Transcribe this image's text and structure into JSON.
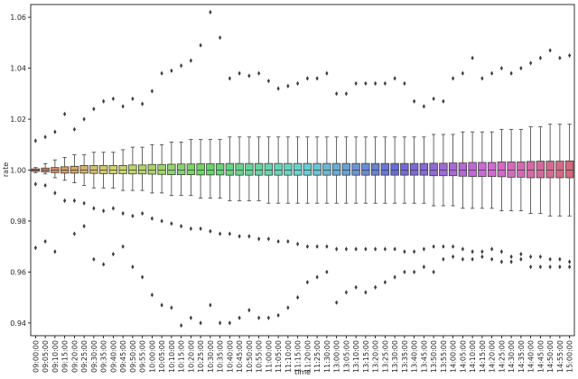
{
  "chart_data": {
    "type": "boxplot",
    "title": "",
    "xlabel": "time",
    "ylabel": "rate",
    "ylim": [
      0.935,
      1.065
    ],
    "yticks": [
      0.94,
      0.96,
      0.98,
      1.0,
      1.02,
      1.04,
      1.06
    ],
    "grid": false,
    "legend": "none",
    "categories": [
      "09:00:00",
      "09:05:00",
      "09:10:00",
      "09:15:00",
      "09:20:00",
      "09:25:00",
      "09:30:00",
      "09:35:00",
      "09:40:00",
      "09:45:00",
      "09:50:00",
      "09:55:00",
      "10:00:00",
      "10:05:00",
      "10:10:00",
      "10:15:00",
      "10:20:00",
      "10:25:00",
      "10:30:00",
      "10:35:00",
      "10:40:00",
      "10:45:00",
      "10:50:00",
      "10:55:00",
      "11:00:00",
      "11:05:00",
      "11:10:00",
      "11:15:00",
      "11:20:00",
      "11:25:00",
      "11:30:00",
      "13:00:00",
      "13:05:00",
      "13:10:00",
      "13:15:00",
      "13:20:00",
      "13:25:00",
      "13:30:00",
      "13:35:00",
      "13:40:00",
      "13:45:00",
      "13:50:00",
      "13:55:00",
      "14:00:00",
      "14:05:00",
      "14:10:00",
      "14:15:00",
      "14:20:00",
      "14:25:00",
      "14:30:00",
      "14:35:00",
      "14:40:00",
      "14:45:00",
      "14:50:00",
      "14:55:00",
      "15:00:00"
    ],
    "boxes": [
      {
        "q1": 0.9995,
        "median": 1.0,
        "q3": 1.0005,
        "whisker_low": 0.999,
        "whisker_high": 1.001,
        "outliers": [
          1.0115,
          0.9945,
          0.9695
        ]
      },
      {
        "q1": 0.9993,
        "median": 1.0,
        "q3": 1.0008,
        "whisker_low": 0.9985,
        "whisker_high": 1.0025,
        "outliers": [
          1.013,
          0.994,
          0.972
        ]
      },
      {
        "q1": 0.999,
        "median": 1.0,
        "q3": 1.001,
        "whisker_low": 0.997,
        "whisker_high": 1.004,
        "outliers": [
          1.015,
          0.991,
          0.968
        ]
      },
      {
        "q1": 0.9988,
        "median": 1.0,
        "q3": 1.0013,
        "whisker_low": 0.996,
        "whisker_high": 1.005,
        "outliers": [
          1.022,
          0.988
        ]
      },
      {
        "q1": 0.9988,
        "median": 1.0,
        "q3": 1.0015,
        "whisker_low": 0.995,
        "whisker_high": 1.006,
        "outliers": [
          1.016,
          0.988,
          0.975
        ]
      },
      {
        "q1": 0.9988,
        "median": 1.0,
        "q3": 1.0018,
        "whisker_low": 0.994,
        "whisker_high": 1.006,
        "outliers": [
          1.02,
          0.987,
          0.978
        ]
      },
      {
        "q1": 0.9987,
        "median": 1.0,
        "q3": 1.0018,
        "whisker_low": 0.993,
        "whisker_high": 1.007,
        "outliers": [
          1.024,
          0.985,
          0.965
        ]
      },
      {
        "q1": 0.9986,
        "median": 1.0,
        "q3": 1.0018,
        "whisker_low": 0.993,
        "whisker_high": 1.007,
        "outliers": [
          1.027,
          0.984,
          0.963
        ]
      },
      {
        "q1": 0.9986,
        "median": 1.0,
        "q3": 1.0018,
        "whisker_low": 0.993,
        "whisker_high": 1.007,
        "outliers": [
          1.028,
          0.985,
          0.967
        ]
      },
      {
        "q1": 0.9986,
        "median": 1.0,
        "q3": 1.0018,
        "whisker_low": 0.992,
        "whisker_high": 1.008,
        "outliers": [
          1.025,
          0.983,
          0.97
        ]
      },
      {
        "q1": 0.9985,
        "median": 1.0,
        "q3": 1.002,
        "whisker_low": 0.992,
        "whisker_high": 1.009,
        "outliers": [
          1.028,
          0.982,
          0.962
        ]
      },
      {
        "q1": 0.9985,
        "median": 1.0,
        "q3": 1.002,
        "whisker_low": 0.992,
        "whisker_high": 1.009,
        "outliers": [
          1.026,
          0.983,
          0.958
        ]
      },
      {
        "q1": 0.9984,
        "median": 1.0,
        "q3": 1.0022,
        "whisker_low": 0.991,
        "whisker_high": 1.01,
        "outliers": [
          1.031,
          0.981,
          0.951
        ]
      },
      {
        "q1": 0.9983,
        "median": 1.0,
        "q3": 1.0022,
        "whisker_low": 0.991,
        "whisker_high": 1.01,
        "outliers": [
          1.038,
          0.98,
          0.947
        ]
      },
      {
        "q1": 0.9982,
        "median": 1.0,
        "q3": 1.0023,
        "whisker_low": 0.99,
        "whisker_high": 1.011,
        "outliers": [
          1.039,
          0.979,
          0.946
        ]
      },
      {
        "q1": 0.9982,
        "median": 1.0,
        "q3": 1.0024,
        "whisker_low": 0.99,
        "whisker_high": 1.011,
        "outliers": [
          1.041,
          0.978,
          0.939
        ]
      },
      {
        "q1": 0.9982,
        "median": 1.0,
        "q3": 1.0024,
        "whisker_low": 0.99,
        "whisker_high": 1.012,
        "outliers": [
          1.043,
          0.977,
          0.942
        ]
      },
      {
        "q1": 0.9981,
        "median": 1.0,
        "q3": 1.0025,
        "whisker_low": 0.989,
        "whisker_high": 1.012,
        "outliers": [
          1.049,
          0.977,
          0.94
        ]
      },
      {
        "q1": 0.9981,
        "median": 1.0,
        "q3": 1.0025,
        "whisker_low": 0.989,
        "whisker_high": 1.012,
        "outliers": [
          1.062,
          0.976,
          0.947
        ]
      },
      {
        "q1": 0.9981,
        "median": 1.0,
        "q3": 1.0025,
        "whisker_low": 0.989,
        "whisker_high": 1.012,
        "outliers": [
          1.052,
          0.975,
          0.94
        ]
      },
      {
        "q1": 0.998,
        "median": 1.0,
        "q3": 1.0026,
        "whisker_low": 0.988,
        "whisker_high": 1.013,
        "outliers": [
          1.036,
          0.975,
          0.94
        ]
      },
      {
        "q1": 0.998,
        "median": 1.0,
        "q3": 1.0026,
        "whisker_low": 0.988,
        "whisker_high": 1.013,
        "outliers": [
          1.038,
          0.974,
          0.942
        ]
      },
      {
        "q1": 0.998,
        "median": 1.0,
        "q3": 1.0026,
        "whisker_low": 0.988,
        "whisker_high": 1.013,
        "outliers": [
          1.037,
          0.974,
          0.945
        ]
      },
      {
        "q1": 0.998,
        "median": 1.0,
        "q3": 1.0026,
        "whisker_low": 0.988,
        "whisker_high": 1.013,
        "outliers": [
          1.038,
          0.973,
          0.942
        ]
      },
      {
        "q1": 0.998,
        "median": 1.0,
        "q3": 1.0026,
        "whisker_low": 0.987,
        "whisker_high": 1.013,
        "outliers": [
          1.035,
          0.973,
          0.942
        ]
      },
      {
        "q1": 0.998,
        "median": 1.0,
        "q3": 1.0026,
        "whisker_low": 0.987,
        "whisker_high": 1.013,
        "outliers": [
          1.032,
          0.972,
          0.943
        ]
      },
      {
        "q1": 0.998,
        "median": 1.0,
        "q3": 1.0026,
        "whisker_low": 0.987,
        "whisker_high": 1.013,
        "outliers": [
          1.033,
          0.972,
          0.946
        ]
      },
      {
        "q1": 0.998,
        "median": 1.0,
        "q3": 1.0026,
        "whisker_low": 0.987,
        "whisker_high": 1.013,
        "outliers": [
          1.034,
          0.971,
          0.95
        ]
      },
      {
        "q1": 0.998,
        "median": 1.0,
        "q3": 1.0026,
        "whisker_low": 0.987,
        "whisker_high": 1.013,
        "outliers": [
          1.036,
          0.97,
          0.956
        ]
      },
      {
        "q1": 0.998,
        "median": 1.0,
        "q3": 1.0026,
        "whisker_low": 0.987,
        "whisker_high": 1.013,
        "outliers": [
          1.036,
          0.97,
          0.958
        ]
      },
      {
        "q1": 0.998,
        "median": 1.0,
        "q3": 1.0026,
        "whisker_low": 0.987,
        "whisker_high": 1.013,
        "outliers": [
          1.038,
          0.97,
          0.96
        ]
      },
      {
        "q1": 0.998,
        "median": 1.0,
        "q3": 1.0026,
        "whisker_low": 0.987,
        "whisker_high": 1.013,
        "outliers": [
          1.03,
          0.969,
          0.948
        ]
      },
      {
        "q1": 0.998,
        "median": 1.0,
        "q3": 1.0026,
        "whisker_low": 0.987,
        "whisker_high": 1.013,
        "outliers": [
          1.03,
          0.969,
          0.952
        ]
      },
      {
        "q1": 0.998,
        "median": 1.0,
        "q3": 1.0026,
        "whisker_low": 0.987,
        "whisker_high": 1.013,
        "outliers": [
          1.034,
          0.969,
          0.954
        ]
      },
      {
        "q1": 0.998,
        "median": 1.0,
        "q3": 1.0026,
        "whisker_low": 0.987,
        "whisker_high": 1.013,
        "outliers": [
          1.034,
          0.969,
          0.952
        ]
      },
      {
        "q1": 0.998,
        "median": 1.0,
        "q3": 1.0026,
        "whisker_low": 0.987,
        "whisker_high": 1.013,
        "outliers": [
          1.034,
          0.969,
          0.954
        ]
      },
      {
        "q1": 0.998,
        "median": 1.0,
        "q3": 1.0026,
        "whisker_low": 0.987,
        "whisker_high": 1.013,
        "outliers": [
          1.034,
          0.969,
          0.956
        ]
      },
      {
        "q1": 0.998,
        "median": 1.0,
        "q3": 1.0026,
        "whisker_low": 0.987,
        "whisker_high": 1.013,
        "outliers": [
          1.036,
          0.969,
          0.958
        ]
      },
      {
        "q1": 0.998,
        "median": 1.0,
        "q3": 1.0026,
        "whisker_low": 0.987,
        "whisker_high": 1.013,
        "outliers": [
          1.034,
          0.968,
          0.96
        ]
      },
      {
        "q1": 0.998,
        "median": 1.0,
        "q3": 1.0026,
        "whisker_low": 0.987,
        "whisker_high": 1.013,
        "outliers": [
          1.027,
          0.968,
          0.96
        ]
      },
      {
        "q1": 0.998,
        "median": 1.0,
        "q3": 1.0026,
        "whisker_low": 0.987,
        "whisker_high": 1.013,
        "outliers": [
          1.025,
          0.969,
          0.962
        ]
      },
      {
        "q1": 0.9978,
        "median": 1.0,
        "q3": 1.0027,
        "whisker_low": 0.986,
        "whisker_high": 1.014,
        "outliers": [
          1.028,
          0.97,
          0.96
        ]
      },
      {
        "q1": 0.9978,
        "median": 1.0,
        "q3": 1.0027,
        "whisker_low": 0.986,
        "whisker_high": 1.014,
        "outliers": [
          1.027,
          0.97,
          0.965
        ]
      },
      {
        "q1": 0.9978,
        "median": 1.0,
        "q3": 1.0028,
        "whisker_low": 0.986,
        "whisker_high": 1.014,
        "outliers": [
          1.036,
          0.97,
          0.966
        ]
      },
      {
        "q1": 0.9976,
        "median": 1.0,
        "q3": 1.0028,
        "whisker_low": 0.985,
        "whisker_high": 1.015,
        "outliers": [
          1.038,
          0.969,
          0.965
        ]
      },
      {
        "q1": 0.9975,
        "median": 1.0,
        "q3": 1.003,
        "whisker_low": 0.985,
        "whisker_high": 1.015,
        "outliers": [
          1.044,
          0.968,
          0.965
        ]
      },
      {
        "q1": 0.9975,
        "median": 1.0,
        "q3": 1.003,
        "whisker_low": 0.985,
        "whisker_high": 1.015,
        "outliers": [
          1.036,
          0.968,
          0.966
        ]
      },
      {
        "q1": 0.9975,
        "median": 1.0,
        "q3": 1.003,
        "whisker_low": 0.985,
        "whisker_high": 1.015,
        "outliers": [
          1.038,
          0.969,
          0.965
        ]
      },
      {
        "q1": 0.9974,
        "median": 1.0,
        "q3": 1.0032,
        "whisker_low": 0.984,
        "whisker_high": 1.016,
        "outliers": [
          1.04,
          0.968,
          0.964
        ]
      },
      {
        "q1": 0.9972,
        "median": 1.0,
        "q3": 1.0032,
        "whisker_low": 0.984,
        "whisker_high": 1.016,
        "outliers": [
          1.038,
          0.966,
          0.964
        ]
      },
      {
        "q1": 0.9972,
        "median": 1.0,
        "q3": 1.0032,
        "whisker_low": 0.984,
        "whisker_high": 1.016,
        "outliers": [
          1.04,
          0.967,
          0.965
        ]
      },
      {
        "q1": 0.997,
        "median": 1.0,
        "q3": 1.0034,
        "whisker_low": 0.983,
        "whisker_high": 1.017,
        "outliers": [
          1.042,
          0.966,
          0.962
        ]
      },
      {
        "q1": 0.997,
        "median": 1.0,
        "q3": 1.0035,
        "whisker_low": 0.983,
        "whisker_high": 1.017,
        "outliers": [
          1.044,
          0.966,
          0.962
        ]
      },
      {
        "q1": 0.997,
        "median": 1.0,
        "q3": 1.0035,
        "whisker_low": 0.982,
        "whisker_high": 1.018,
        "outliers": [
          1.047,
          0.965,
          0.962
        ]
      },
      {
        "q1": 0.997,
        "median": 1.0,
        "q3": 1.0035,
        "whisker_low": 0.982,
        "whisker_high": 1.018,
        "outliers": [
          1.044,
          0.965,
          0.962
        ]
      },
      {
        "q1": 0.997,
        "median": 1.0,
        "q3": 1.0036,
        "whisker_low": 0.982,
        "whisker_high": 1.018,
        "outliers": [
          1.045,
          0.964,
          0.962
        ]
      }
    ]
  }
}
